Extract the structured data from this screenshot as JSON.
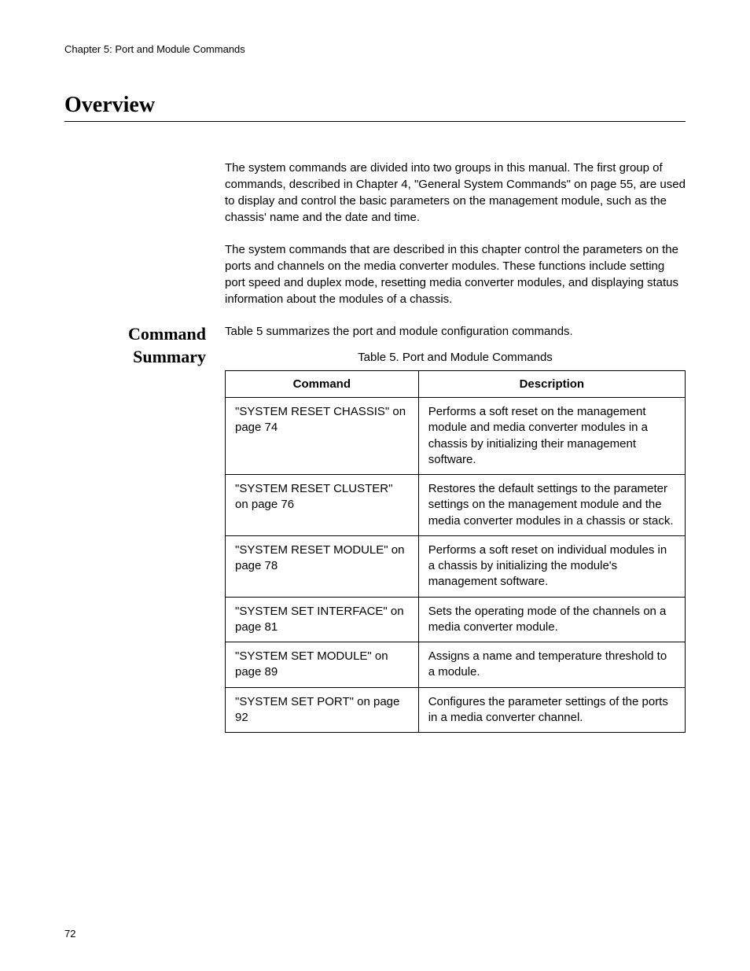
{
  "header": {
    "chapter": "Chapter 5: Port and Module Commands"
  },
  "title": "Overview",
  "paragraphs": {
    "p1": "The system commands are divided into two groups in this manual. The first group of commands, described in Chapter 4, \"General System Commands\" on page 55, are used to display and control the basic parameters on the management module, such as the chassis' name and the date and time.",
    "p2": "The system commands that are described in this chapter control the parameters on the ports and channels on the media converter modules. These functions include setting port speed and duplex mode, resetting media converter modules, and displaying status information about the modules of a chassis."
  },
  "sidebar": {
    "command_summary": "Command Summary"
  },
  "table": {
    "intro": "Table 5 summarizes the port and module configuration commands.",
    "caption": "Table 5. Port and Module Commands",
    "headers": {
      "command": "Command",
      "description": "Description"
    },
    "rows": [
      {
        "command": "\"SYSTEM RESET CHASSIS\" on page 74",
        "description": "Performs a soft reset on the management module and media converter modules in a chassis by initializing their management software."
      },
      {
        "command": "\"SYSTEM RESET CLUSTER\" on page 76",
        "description": "Restores the default settings to the parameter settings on the management module and the media converter modules in a chassis or stack."
      },
      {
        "command": "\"SYSTEM RESET MODULE\" on page 78",
        "description": "Performs a soft reset on individual modules in a chassis by initializing the module's management software."
      },
      {
        "command": "\"SYSTEM SET INTERFACE\" on page 81",
        "description": "Sets the operating mode of the channels on a media converter module."
      },
      {
        "command": "\"SYSTEM SET MODULE\" on page 89",
        "description": "Assigns a name and temperature threshold to a module."
      },
      {
        "command": "\"SYSTEM SET PORT\" on page 92",
        "description": "Configures the parameter settings of the ports in a media converter channel."
      }
    ]
  },
  "pageNumber": "72"
}
